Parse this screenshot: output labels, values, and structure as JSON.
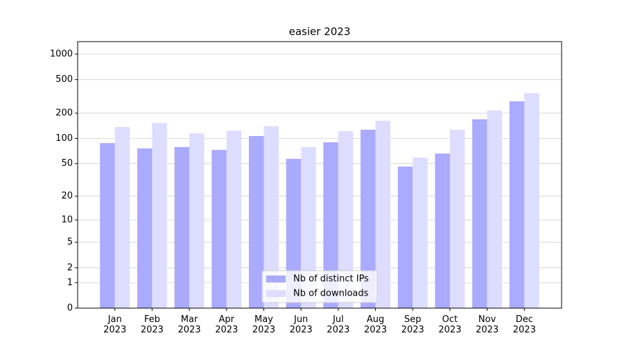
{
  "chart_data": {
    "type": "bar",
    "title": "easier 2023",
    "categories": [
      "Jan\n2023",
      "Feb\n2023",
      "Mar\n2023",
      "Apr\n2023",
      "May\n2023",
      "Jun\n2023",
      "Jul\n2023",
      "Aug\n2023",
      "Sep\n2023",
      "Oct\n2023",
      "Nov\n2023",
      "Dec\n2023"
    ],
    "series": [
      {
        "name": "Nb of distinct IPs",
        "color": "#aaaaff",
        "values": [
          88,
          76,
          79,
          73,
          107,
          57,
          90,
          127,
          46,
          66,
          169,
          276
        ]
      },
      {
        "name": "Nb of downloads",
        "color": "#ddddff",
        "values": [
          137,
          153,
          115,
          124,
          140,
          79,
          122,
          162,
          59,
          127,
          216,
          346
        ]
      }
    ],
    "yscale": "log1p",
    "ylim": [
      0,
      1405
    ],
    "yticks": [
      0,
      1,
      2,
      5,
      10,
      20,
      50,
      100,
      200,
      500,
      1000
    ],
    "grid": true,
    "legend": "lower center"
  }
}
